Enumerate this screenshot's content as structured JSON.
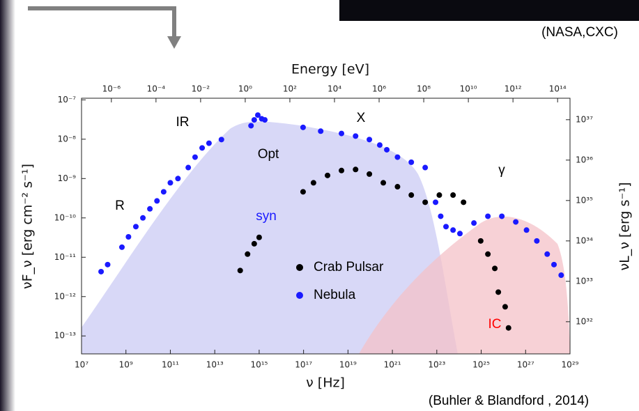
{
  "chart_data": {
    "type": "scatter",
    "xlabel": "ν [Hz]",
    "ylabel": "νF_ν [erg cm⁻² s⁻¹]",
    "x2label": "Energy [eV]",
    "y2label": "νL_ν [erg s⁻¹]",
    "log_x": true,
    "log_y": true,
    "xlim": [
      10000000.0,
      1e+29
    ],
    "ylim": [
      3.5e-14,
      1.1e-07
    ],
    "x2lim": [
      4.6e-08,
      360000000000000.0
    ],
    "y2lim": [
      1.6e+31,
      3.4e+37
    ],
    "xticks": [
      {
        "value": 10000000.0,
        "label": "10⁷"
      },
      {
        "value": 1000000000.0,
        "label": "10⁹"
      },
      {
        "value": 100000000000.0,
        "label": "10¹¹"
      },
      {
        "value": 10000000000000.0,
        "label": "10¹³"
      },
      {
        "value": 1000000000000000.0,
        "label": "10¹⁵"
      },
      {
        "value": 1e+17,
        "label": "10¹⁷"
      },
      {
        "value": 1e+19,
        "label": "10¹⁹"
      },
      {
        "value": 1e+21,
        "label": "10²¹"
      },
      {
        "value": 1e+23,
        "label": "10²³"
      },
      {
        "value": 1e+25,
        "label": "10²⁵"
      },
      {
        "value": 1e+27,
        "label": "10²⁷"
      },
      {
        "value": 1e+29,
        "label": "10²⁹"
      }
    ],
    "x2ticks": [
      {
        "value": 1e-06,
        "label": "10⁻⁶"
      },
      {
        "value": 0.0001,
        "label": "10⁻⁴"
      },
      {
        "value": 0.01,
        "label": "10⁻²"
      },
      {
        "value": 1,
        "label": "10⁰"
      },
      {
        "value": 100.0,
        "label": "10²"
      },
      {
        "value": 10000.0,
        "label": "10⁴"
      },
      {
        "value": 1000000.0,
        "label": "10⁶"
      },
      {
        "value": 100000000.0,
        "label": "10⁸"
      },
      {
        "value": 10000000000.0,
        "label": "10¹⁰"
      },
      {
        "value": 1000000000000.0,
        "label": "10¹²"
      },
      {
        "value": 100000000000000.0,
        "label": "10¹⁴"
      }
    ],
    "yticks": [
      {
        "value": 1e-13,
        "label": "10⁻¹³"
      },
      {
        "value": 1e-12,
        "label": "10⁻¹²"
      },
      {
        "value": 1e-11,
        "label": "10⁻¹¹"
      },
      {
        "value": 1e-10,
        "label": "10⁻¹⁰"
      },
      {
        "value": 1e-09,
        "label": "10⁻⁹"
      },
      {
        "value": 1e-08,
        "label": "10⁻⁸"
      },
      {
        "value": 1e-07,
        "label": "10⁻⁷"
      }
    ],
    "y2ticks": [
      {
        "value": 1e+32,
        "label": "10³²"
      },
      {
        "value": 1e+33,
        "label": "10³³"
      },
      {
        "value": 1e+34,
        "label": "10³⁴"
      },
      {
        "value": 1e+35,
        "label": "10³⁵"
      },
      {
        "value": 1e+36,
        "label": "10³⁶"
      },
      {
        "value": 1e+37,
        "label": "10³⁷"
      }
    ],
    "series": [
      {
        "name": "Crab Pulsar",
        "color": "#000000",
        "x": [
          140000000000000.0,
          300000000000000.0,
          600000000000000.0,
          1000000000000000.0,
          9.5e+16,
          2.8e+17,
          1.2e+18,
          5.1e+18,
          2.2e+19,
          9.2e+19,
          3.9e+20,
          1.7e+21,
          7.1e+21,
          3e+22,
          1.3e+23,
          5.4e+23,
          1.6e+24,
          9.5e+24,
          2e+25,
          4.1e+25,
          5.9e+25,
          1.2e+26,
          1.7e+26
        ],
        "values": [
          4.6e-12,
          1.2e-11,
          2.2e-11,
          3.2e-11,
          4.6e-10,
          7.8e-10,
          1.2e-09,
          1.6e-09,
          1.7e-09,
          1.3e-09,
          7.8e-10,
          6.2e-10,
          3.8e-10,
          2.5e-10,
          3.8e-10,
          3.8e-10,
          2.5e-10,
          2.6e-11,
          1.2e-11,
          5.2e-12,
          1.3e-12,
          5.5e-13,
          1.6e-13
        ]
      },
      {
        "name": "Nebula",
        "color": "#1a1aff",
        "x": [
          76000000.0,
          150000000.0,
          660000000.0,
          1300000000.0,
          2800000000.0,
          5800000000.0,
          12000000000.0,
          25000000000.0,
          50000000000.0,
          100000000000.0,
          220000000000.0,
          640000000000.0,
          1300000000000.0,
          2700000000000.0,
          5500000000000.0,
          20000000000000.0,
          430000000000000.0,
          600000000000000.0,
          870000000000000.0,
          1300000000000000.0,
          1800000000000000.0,
          9.5e+16,
          5.9e+17,
          5.1e+18,
          2.2e+19,
          9.2e+19,
          2.7e+20,
          5.6e+20,
          1.7e+21,
          7.1e+21,
          3e+22,
          8.8e+22,
          1.5e+23,
          2.6e+23,
          5.4e+23,
          1.1e+24,
          4.7e+24,
          2e+25,
          8.5e+25,
          3.6e+26,
          1.1e+27,
          3.2e+27,
          9.4e+27,
          1.9e+28,
          4e+28
        ],
        "values": [
          4.3e-12,
          6.5e-12,
          1.8e-11,
          3.3e-11,
          6e-11,
          1e-10,
          1.7e-10,
          2.7e-10,
          4.6e-10,
          7.8e-10,
          1e-09,
          1.9e-09,
          3.5e-09,
          6e-09,
          7.9e-09,
          9.8e-09,
          2.2e-08,
          3.1e-08,
          4.1e-08,
          3.3e-08,
          3.1e-08,
          2e-08,
          1.6e-08,
          1.4e-08,
          1.2e-08,
          9.8e-09,
          7.1e-09,
          5.4e-09,
          3.5e-09,
          2.6e-09,
          1.9e-09,
          2.5e-10,
          1.1e-10,
          6e-11,
          4.9e-11,
          4e-11,
          7.4e-11,
          1.1e-10,
          1.1e-10,
          7.9e-11,
          4.9e-11,
          2.6e-11,
          1.2e-11,
          6.5e-12,
          3.5e-12
        ]
      }
    ],
    "annotations": [
      {
        "text": "R",
        "color": "#000000"
      },
      {
        "text": "IR",
        "color": "#000000"
      },
      {
        "text": "Opt",
        "color": "#000000"
      },
      {
        "text": "X",
        "color": "#000000"
      },
      {
        "text": "γ",
        "color": "#000000"
      },
      {
        "text": "syn",
        "color": "#1a1aff"
      },
      {
        "text": "IC",
        "color": "#ff0000"
      }
    ],
    "credits": [
      "(NASA,CXC)",
      "(Buhler & Blandford , 2014)"
    ]
  }
}
